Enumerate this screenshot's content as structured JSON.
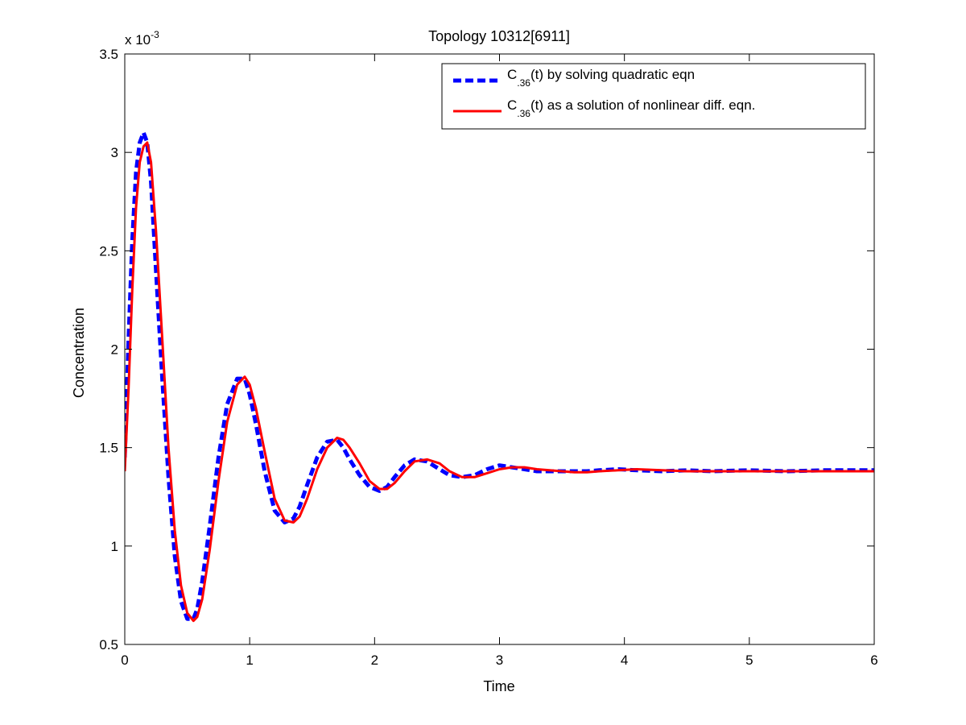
{
  "chart_data": {
    "type": "line",
    "title": "Topology 10312[6911]",
    "xlabel": "Time",
    "ylabel": "Concentration",
    "y_multiplier": "x 10",
    "y_multiplier_exponent": "-3",
    "xlim": [
      0,
      6
    ],
    "ylim": [
      0.5,
      3.5
    ],
    "xticks": [
      "0",
      "1",
      "2",
      "3",
      "4",
      "5",
      "6"
    ],
    "yticks": [
      "0.5",
      "1",
      "1.5",
      "2",
      "2.5",
      "3",
      "3.5"
    ],
    "grid": false,
    "legend_position": "top-right",
    "series": [
      {
        "name": "C_.36(t) by solving quadratic eqn",
        "label_prefix": "C",
        "label_sub": ".36",
        "label_suffix": "(t) by solving quadratic eqn",
        "color": "#0000ff",
        "style": "dashed",
        "x": [
          0,
          0.03,
          0.06,
          0.09,
          0.12,
          0.15,
          0.18,
          0.21,
          0.25,
          0.3,
          0.35,
          0.4,
          0.45,
          0.5,
          0.55,
          0.58,
          0.62,
          0.68,
          0.75,
          0.82,
          0.9,
          0.96,
          1.0,
          1.05,
          1.12,
          1.2,
          1.28,
          1.35,
          1.4,
          1.46,
          1.54,
          1.62,
          1.7,
          1.75,
          1.8,
          1.88,
          1.96,
          2.04,
          2.1,
          2.16,
          2.24,
          2.32,
          2.42,
          2.52,
          2.6,
          2.7,
          2.8,
          2.9,
          3.0,
          3.1,
          3.2,
          3.3,
          3.4,
          3.5,
          3.6,
          3.7,
          3.8,
          3.95,
          4.1,
          4.3,
          4.5,
          4.7,
          5.0,
          5.3,
          5.6,
          6.0
        ],
        "values": [
          1.45,
          2.05,
          2.55,
          2.9,
          3.05,
          3.1,
          3.05,
          2.85,
          2.4,
          1.85,
          1.35,
          0.95,
          0.72,
          0.63,
          0.63,
          0.68,
          0.82,
          1.1,
          1.45,
          1.72,
          1.85,
          1.85,
          1.77,
          1.62,
          1.38,
          1.18,
          1.12,
          1.14,
          1.2,
          1.31,
          1.45,
          1.53,
          1.54,
          1.5,
          1.44,
          1.36,
          1.3,
          1.28,
          1.3,
          1.35,
          1.41,
          1.44,
          1.43,
          1.39,
          1.36,
          1.35,
          1.36,
          1.39,
          1.41,
          1.4,
          1.39,
          1.38,
          1.38,
          1.38,
          1.38,
          1.38,
          1.385,
          1.39,
          1.385,
          1.38,
          1.385,
          1.38,
          1.385,
          1.38,
          1.385,
          1.385
        ]
      },
      {
        "name": "C_.36(t) as a solution of nonlinear diff. eqn.",
        "label_prefix": "C",
        "label_sub": ".36",
        "label_suffix": "(t) as a solution of nonlinear diff. eqn.",
        "color": "#ff0000",
        "style": "solid",
        "x": [
          0,
          0.03,
          0.06,
          0.09,
          0.12,
          0.15,
          0.18,
          0.21,
          0.25,
          0.3,
          0.35,
          0.4,
          0.45,
          0.5,
          0.55,
          0.58,
          0.62,
          0.68,
          0.75,
          0.82,
          0.9,
          0.96,
          1.0,
          1.05,
          1.12,
          1.2,
          1.28,
          1.35,
          1.4,
          1.46,
          1.54,
          1.62,
          1.7,
          1.75,
          1.8,
          1.88,
          1.96,
          2.04,
          2.1,
          2.16,
          2.24,
          2.32,
          2.42,
          2.52,
          2.6,
          2.7,
          2.8,
          2.9,
          3.0,
          3.1,
          3.2,
          3.3,
          3.4,
          3.5,
          3.6,
          3.7,
          3.8,
          3.95,
          4.1,
          4.3,
          4.5,
          4.7,
          5.0,
          5.3,
          5.6,
          6.0
        ],
        "values": [
          1.38,
          1.8,
          2.3,
          2.72,
          2.95,
          3.03,
          3.05,
          2.95,
          2.6,
          2.05,
          1.5,
          1.08,
          0.8,
          0.66,
          0.62,
          0.64,
          0.73,
          0.98,
          1.33,
          1.63,
          1.82,
          1.86,
          1.82,
          1.7,
          1.48,
          1.24,
          1.13,
          1.12,
          1.15,
          1.24,
          1.39,
          1.5,
          1.55,
          1.54,
          1.5,
          1.42,
          1.33,
          1.29,
          1.29,
          1.32,
          1.38,
          1.43,
          1.44,
          1.42,
          1.38,
          1.35,
          1.35,
          1.37,
          1.39,
          1.4,
          1.4,
          1.39,
          1.385,
          1.38,
          1.375,
          1.375,
          1.38,
          1.385,
          1.39,
          1.385,
          1.38,
          1.38,
          1.38,
          1.38,
          1.38,
          1.38
        ]
      }
    ]
  }
}
